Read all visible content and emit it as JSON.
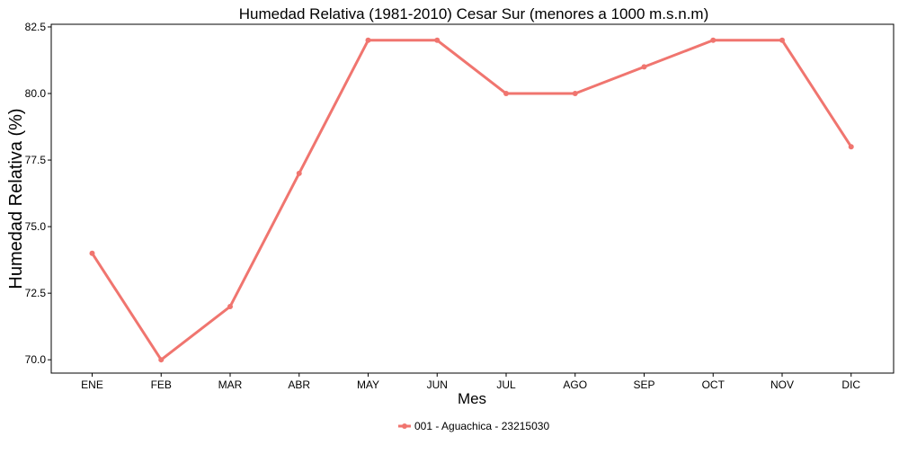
{
  "chart_data": {
    "type": "line",
    "title": "Humedad Relativa (1981-2010) Cesar Sur (menores a 1000 m.s.n.m)",
    "xlabel": "Mes",
    "ylabel": "Humedad Relativa (%)",
    "categories": [
      "ENE",
      "FEB",
      "MAR",
      "ABR",
      "MAY",
      "JUN",
      "JUL",
      "AGO",
      "SEP",
      "OCT",
      "NOV",
      "DIC"
    ],
    "series": [
      {
        "name": "001 - Aguachica - 23215030",
        "values": [
          74,
          70,
          72,
          77,
          82,
          82,
          80,
          80,
          81,
          82,
          82,
          78
        ],
        "color": "#f0756f"
      }
    ],
    "ylim": [
      69.5,
      82.6
    ],
    "yticks": [
      70.0,
      72.5,
      75.0,
      77.5,
      80.0,
      82.5
    ],
    "ytick_labels": [
      "70.0",
      "72.5",
      "75.0",
      "77.5",
      "80.0",
      "82.5"
    ],
    "grid": false,
    "legend_position": "bottom"
  }
}
